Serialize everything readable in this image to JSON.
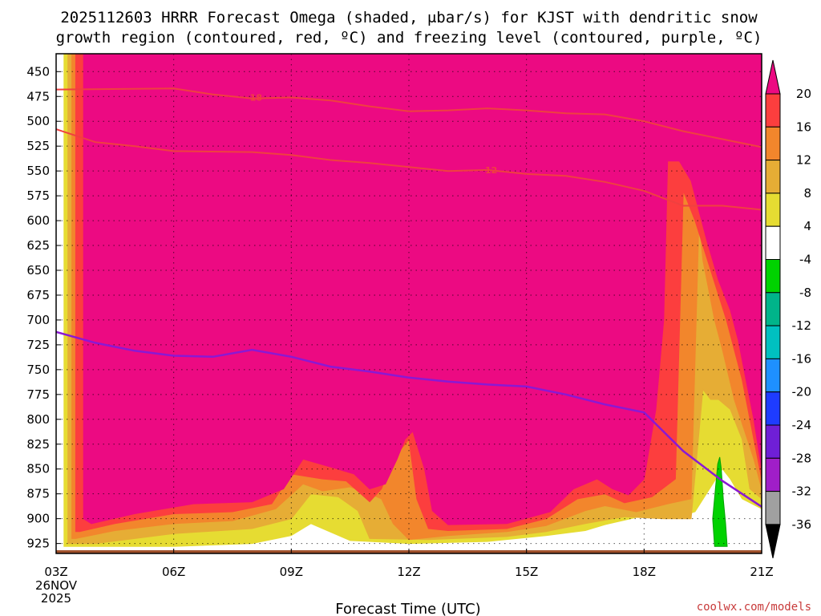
{
  "chart_data": {
    "type": "time-height cross-section",
    "title_lines": [
      "2025112603 HRRR Forecast Omega (shaded, μbar/s) for KJST with dendritic snow",
      "growth region (contoured, red, ºC) and freezing level (contoured, purple, ºC)"
    ],
    "xlabel": "Forecast Time (UTC)",
    "x_ticks": [
      "03Z",
      "06Z",
      "09Z",
      "12Z",
      "15Z",
      "18Z",
      "21Z"
    ],
    "x_date_lines": [
      "26NOV",
      "2025"
    ],
    "x_range_hours": [
      3,
      21
    ],
    "y_ticks": [
      450,
      475,
      500,
      525,
      550,
      575,
      600,
      625,
      650,
      675,
      700,
      725,
      750,
      775,
      800,
      825,
      850,
      875,
      900,
      925
    ],
    "y_range_mb": [
      935,
      432
    ],
    "colorbar": {
      "labels": [
        "20",
        "16",
        "12",
        "8",
        "4",
        "-4",
        "-8",
        "-12",
        "-16",
        "-20",
        "-24",
        "-28",
        "-32",
        "-36"
      ],
      "bins": [
        {
          "lo": 20,
          "hi": null,
          "color": "#ec0a82"
        },
        {
          "lo": 16,
          "hi": 20,
          "color": "#fc3e3e"
        },
        {
          "lo": 12,
          "hi": 16,
          "color": "#f2862c"
        },
        {
          "lo": 8,
          "hi": 12,
          "color": "#e6ad35"
        },
        {
          "lo": 4,
          "hi": 8,
          "color": "#e6dc32"
        },
        {
          "lo": -4,
          "hi": 4,
          "color": "#ffffff"
        },
        {
          "lo": -8,
          "hi": -4,
          "color": "#00d200"
        },
        {
          "lo": -12,
          "hi": -8,
          "color": "#00b48a"
        },
        {
          "lo": -16,
          "hi": -12,
          "color": "#00c0c0"
        },
        {
          "lo": -20,
          "hi": -16,
          "color": "#1e90ff"
        },
        {
          "lo": -24,
          "hi": -20,
          "color": "#1e3cff"
        },
        {
          "lo": -28,
          "hi": -24,
          "color": "#6f1fd6"
        },
        {
          "lo": -32,
          "hi": -28,
          "color": "#a01ec8"
        },
        {
          "lo": -36,
          "hi": -32,
          "color": "#a0a0a0"
        },
        {
          "lo": null,
          "hi": -36,
          "color": "#000000"
        }
      ]
    },
    "contours": {
      "dgz_red": [
        {
          "label": "-18",
          "points": [
            [
              3,
              468
            ],
            [
              6,
              467
            ],
            [
              7,
              473
            ],
            [
              8,
              477
            ],
            [
              9,
              476
            ],
            [
              10,
              479
            ],
            [
              11,
              485
            ],
            [
              12,
              490
            ],
            [
              13,
              489
            ],
            [
              14,
              487
            ],
            [
              15,
              489
            ],
            [
              16,
              492
            ],
            [
              17,
              493
            ],
            [
              18,
              500
            ],
            [
              19,
              510
            ],
            [
              20,
              518
            ],
            [
              21,
              526
            ]
          ]
        },
        {
          "label": "-12",
          "points": [
            [
              3,
              508
            ],
            [
              4,
              521
            ],
            [
              5,
              525
            ],
            [
              6,
              530
            ],
            [
              8,
              531
            ],
            [
              9,
              534
            ],
            [
              10,
              539
            ],
            [
              11,
              542
            ],
            [
              12,
              546
            ],
            [
              13,
              550
            ],
            [
              14,
              549
            ],
            [
              15,
              553
            ],
            [
              16,
              555
            ],
            [
              17,
              561
            ],
            [
              18,
              570
            ],
            [
              19,
              585
            ],
            [
              20,
              585
            ],
            [
              21,
              589
            ]
          ]
        }
      ],
      "freezing_purple": [
        [
          3,
          712
        ],
        [
          4,
          723
        ],
        [
          5,
          731
        ],
        [
          6,
          736
        ],
        [
          7,
          737
        ],
        [
          8,
          730
        ],
        [
          9,
          737
        ],
        [
          10,
          747
        ],
        [
          11,
          752
        ],
        [
          12,
          758
        ],
        [
          13,
          762
        ],
        [
          14,
          765
        ],
        [
          15,
          767
        ],
        [
          16,
          775
        ],
        [
          17,
          785
        ],
        [
          18,
          793
        ],
        [
          19,
          832
        ],
        [
          20,
          862
        ],
        [
          21,
          888
        ]
      ]
    },
    "omega_regions": [
      {
        "level": 4,
        "color": "#e6dc32",
        "points": [
          [
            3.2,
            432
          ],
          [
            4.3,
            432
          ],
          [
            6,
            432
          ],
          [
            9,
            432
          ],
          [
            10.3,
            432
          ],
          [
            12,
            432
          ],
          [
            12.6,
            432
          ],
          [
            16.5,
            432
          ],
          [
            17.6,
            432
          ],
          [
            19.1,
            432
          ],
          [
            20.5,
            432
          ],
          [
            21,
            432
          ],
          [
            21,
            890
          ],
          [
            20.5,
            880
          ],
          [
            20.2,
            860
          ],
          [
            20,
            850
          ],
          [
            19.8,
            862
          ],
          [
            19.3,
            893
          ],
          [
            19,
            897
          ],
          [
            18,
            897
          ],
          [
            17,
            906
          ],
          [
            16.5,
            912
          ],
          [
            15.5,
            917
          ],
          [
            14,
            923
          ],
          [
            12,
            925
          ],
          [
            10.5,
            922
          ],
          [
            9.5,
            905
          ],
          [
            9,
            917
          ],
          [
            8,
            925
          ],
          [
            6,
            928
          ],
          [
            4,
            928
          ],
          [
            3.2,
            928
          ]
        ]
      },
      {
        "level": 8,
        "color": "#e6ad35",
        "points": [
          [
            3.3,
            432
          ],
          [
            4.3,
            432
          ],
          [
            6,
            432
          ],
          [
            9,
            432
          ],
          [
            10.4,
            432
          ],
          [
            12,
            432
          ],
          [
            12.6,
            432
          ],
          [
            16.5,
            432
          ],
          [
            17.5,
            432
          ],
          [
            19.3,
            432
          ],
          [
            20.8,
            432
          ],
          [
            21,
            432
          ],
          [
            21,
            880
          ],
          [
            20.7,
            870
          ],
          [
            20.5,
            820
          ],
          [
            20.2,
            790
          ],
          [
            19.9,
            780
          ],
          [
            19.7,
            780
          ],
          [
            19.5,
            770
          ],
          [
            19.2,
            900
          ],
          [
            18.5,
            900
          ],
          [
            17.5,
            898
          ],
          [
            16.5,
            905
          ],
          [
            15.5,
            913
          ],
          [
            14.5,
            918
          ],
          [
            12.5,
            921
          ],
          [
            11,
            920
          ],
          [
            10.7,
            892
          ],
          [
            10.2,
            878
          ],
          [
            9.5,
            875
          ],
          [
            9,
            900
          ],
          [
            8,
            910
          ],
          [
            6,
            915
          ],
          [
            4,
            925
          ],
          [
            3.3,
            925
          ]
        ]
      },
      {
        "level": 12,
        "color": "#f2862c",
        "points": [
          [
            3.4,
            432
          ],
          [
            4.5,
            432
          ],
          [
            6,
            432
          ],
          [
            9,
            432
          ],
          [
            10.6,
            432
          ],
          [
            12,
            432
          ],
          [
            12.5,
            432
          ],
          [
            16,
            432
          ],
          [
            17.5,
            432
          ],
          [
            19.3,
            432
          ],
          [
            20.6,
            432
          ],
          [
            21,
            432
          ],
          [
            21,
            870
          ],
          [
            20.8,
            840
          ],
          [
            20.3,
            780
          ],
          [
            20,
            730
          ],
          [
            19.8,
            700
          ],
          [
            19.5,
            640
          ],
          [
            19.4,
            600
          ],
          [
            19.2,
            880
          ],
          [
            18.6,
            885
          ],
          [
            17.8,
            893
          ],
          [
            17,
            887
          ],
          [
            16.5,
            892
          ],
          [
            15.5,
            907
          ],
          [
            14.5,
            913
          ],
          [
            13,
            917
          ],
          [
            12,
            921
          ],
          [
            11.6,
            905
          ],
          [
            11.3,
            880
          ],
          [
            11,
            875
          ],
          [
            10.5,
            868
          ],
          [
            9.8,
            872
          ],
          [
            9.3,
            865
          ],
          [
            8.6,
            890
          ],
          [
            7.5,
            902
          ],
          [
            6,
            905
          ],
          [
            4.5,
            912
          ],
          [
            3.5,
            920
          ],
          [
            3.4,
            920
          ]
        ]
      },
      {
        "level": 16,
        "color": "#fc3e3e",
        "points": [
          [
            3.5,
            432
          ],
          [
            5,
            432
          ],
          [
            6,
            432
          ],
          [
            9,
            432
          ],
          [
            10.8,
            432
          ],
          [
            12,
            432
          ],
          [
            12.4,
            432
          ],
          [
            15.8,
            432
          ],
          [
            17.5,
            432
          ],
          [
            19.5,
            432
          ],
          [
            20.4,
            432
          ],
          [
            21,
            432
          ],
          [
            21,
            860
          ],
          [
            20.8,
            820
          ],
          [
            20.5,
            760
          ],
          [
            20.1,
            700
          ],
          [
            19.7,
            650
          ],
          [
            19.3,
            600
          ],
          [
            19,
            570
          ],
          [
            18.8,
            860
          ],
          [
            18.2,
            878
          ],
          [
            17.5,
            884
          ],
          [
            17,
            875
          ],
          [
            16.3,
            880
          ],
          [
            15.5,
            900
          ],
          [
            14.5,
            910
          ],
          [
            13,
            912
          ],
          [
            12.5,
            910
          ],
          [
            12.2,
            880
          ],
          [
            12,
            820
          ],
          [
            11.6,
            840
          ],
          [
            11.3,
            870
          ],
          [
            11,
            883
          ],
          [
            10.4,
            862
          ],
          [
            9.8,
            860
          ],
          [
            9,
            855
          ],
          [
            8.5,
            885
          ],
          [
            7.5,
            893
          ],
          [
            6,
            895
          ],
          [
            4.5,
            905
          ],
          [
            3.6,
            913
          ],
          [
            3.5,
            913
          ]
        ]
      },
      {
        "level": 20,
        "color": "#ec0a82",
        "points": [
          [
            3.7,
            432
          ],
          [
            4.8,
            432
          ],
          [
            6.2,
            432
          ],
          [
            7.5,
            432
          ],
          [
            9.8,
            432
          ],
          [
            10.8,
            432
          ],
          [
            12,
            432
          ],
          [
            12.3,
            432
          ],
          [
            14.5,
            432
          ],
          [
            16,
            432
          ],
          [
            17.4,
            432
          ],
          [
            18.2,
            432
          ],
          [
            19.6,
            432
          ],
          [
            20.2,
            432
          ],
          [
            21,
            432
          ],
          [
            21,
            850
          ],
          [
            20.8,
            800
          ],
          [
            20.6,
            760
          ],
          [
            20.4,
            720
          ],
          [
            20.2,
            690
          ],
          [
            19.9,
            660
          ],
          [
            19.6,
            620
          ],
          [
            19.2,
            560
          ],
          [
            18.9,
            540
          ],
          [
            18.6,
            540
          ],
          [
            18.5,
            700
          ],
          [
            18.3,
            790
          ],
          [
            18,
            860
          ],
          [
            17.6,
            876
          ],
          [
            17.2,
            870
          ],
          [
            16.8,
            860
          ],
          [
            16.2,
            870
          ],
          [
            15.6,
            893
          ],
          [
            14.5,
            905
          ],
          [
            13,
            906
          ],
          [
            12.6,
            892
          ],
          [
            12.4,
            850
          ],
          [
            12.1,
            812
          ],
          [
            11.9,
            820
          ],
          [
            11.7,
            840
          ],
          [
            11.4,
            865
          ],
          [
            11,
            870
          ],
          [
            10.6,
            855
          ],
          [
            10,
            848
          ],
          [
            9.3,
            840
          ],
          [
            8.8,
            870
          ],
          [
            8,
            883
          ],
          [
            6.5,
            885
          ],
          [
            5,
            895
          ],
          [
            3.9,
            905
          ],
          [
            3.7,
            900
          ]
        ]
      }
    ],
    "green_plume": {
      "level": -4,
      "color": "#00d200"
    },
    "watermark": "coolwx.com/models"
  }
}
